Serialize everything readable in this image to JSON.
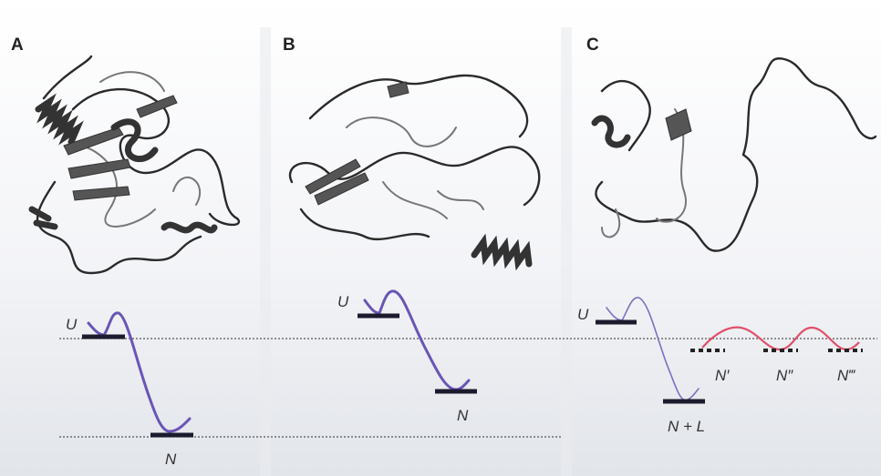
{
  "panels": [
    {
      "label": "A",
      "unfolded": "U",
      "native": "N"
    },
    {
      "label": "B",
      "unfolded": "U",
      "native": "N"
    },
    {
      "label": "C",
      "unfolded": "U",
      "native": "N + L",
      "alternatives": [
        "N′",
        "N″",
        "N‴"
      ]
    }
  ]
}
